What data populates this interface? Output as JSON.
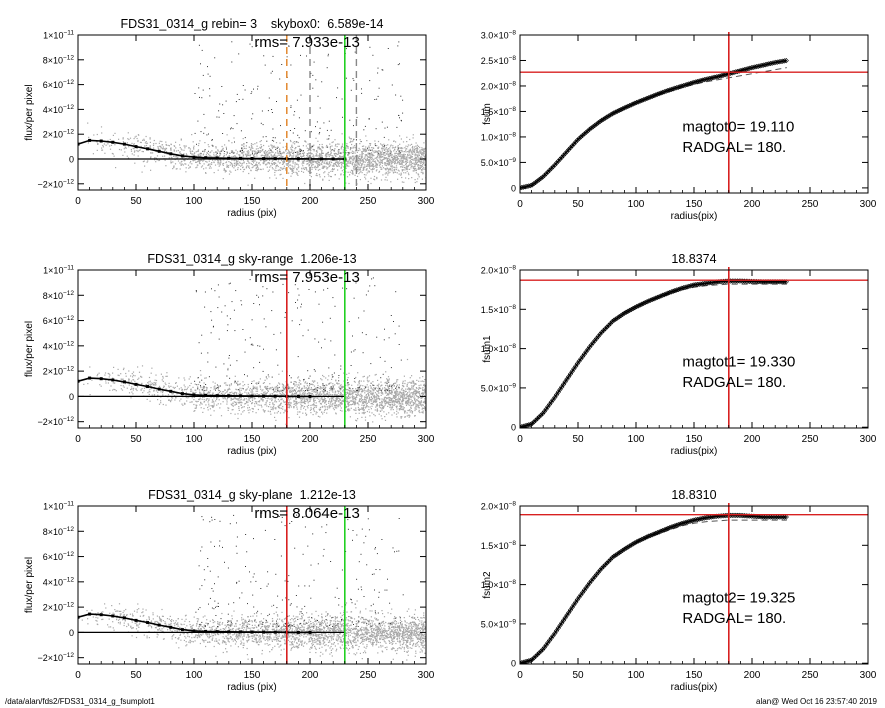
{
  "footer": {
    "path": "/data/alan/fds2/FDS31_0314_g_fsumplot1",
    "user_time": "alan@  Wed Oct 16 23:57:40 2019"
  },
  "colors": {
    "red": "#d82020",
    "green": "#22d022",
    "orange": "#e08020",
    "scatter_gray": "#a8a8a8",
    "axis": "#000000"
  },
  "chart_data": [
    {
      "id": "p1",
      "type": "scatter",
      "title": "FDS31_0314_g rebin= 3    skybox0:  6.589e-14",
      "annotation": "rms= 7.933e-13",
      "xlabel": "radius (pix)",
      "ylabel": "flux/per pixel",
      "xlim": [
        0,
        300
      ],
      "ylim": [
        -2.5e-12,
        1e-11
      ],
      "xticks": [
        0,
        50,
        100,
        150,
        200,
        250,
        300
      ],
      "yticks": [
        {
          "v": -2e-12,
          "m": "−2×10",
          "e": "−12"
        },
        {
          "v": 0,
          "m": "0",
          "e": ""
        },
        {
          "v": 2e-12,
          "m": "2×10",
          "e": "−12"
        },
        {
          "v": 4e-12,
          "m": "4×10",
          "e": "−12"
        },
        {
          "v": 6e-12,
          "m": "6×10",
          "e": "−12"
        },
        {
          "v": 8e-12,
          "m": "8×10",
          "e": "−12"
        },
        {
          "v": 1e-11,
          "m": "1×10",
          "e": "−11"
        }
      ],
      "profile": {
        "x": [
          0,
          10,
          20,
          30,
          40,
          50,
          60,
          70,
          80,
          90,
          100,
          110,
          120,
          130,
          140,
          150,
          160,
          170,
          180,
          190,
          200,
          210,
          220,
          230
        ],
        "y": [
          1.2e-12,
          1.5e-12,
          1.45e-12,
          1.35e-12,
          1.2e-12,
          1e-12,
          8.2e-13,
          6.2e-13,
          4.2e-13,
          2.5e-13,
          1.5e-13,
          1e-13,
          8e-14,
          6e-14,
          5e-14,
          4e-14,
          3e-14,
          3e-14,
          2e-14,
          2e-14,
          1e-14,
          1e-14,
          0.0,
          0.0
        ]
      },
      "vlines": [
        {
          "x": 180,
          "color": "#e08020",
          "style": "dashed"
        },
        {
          "x": 200,
          "color": "#888888",
          "style": "dashed"
        },
        {
          "x": 230,
          "color": "#22d022",
          "style": "solid"
        },
        {
          "x": 240,
          "color": "#888888",
          "style": "dashed"
        }
      ],
      "hlines": [
        {
          "y": 0,
          "color": "#000000"
        }
      ],
      "scatter_extent": 300
    },
    {
      "id": "p2",
      "type": "line",
      "title": "",
      "ann1": "magtot0=  19.110",
      "ann2": "RADGAL=    180.",
      "xlabel": "radius(pix)",
      "ylabel": "fsum",
      "xlim": [
        0,
        300
      ],
      "ylim": [
        -1e-09,
        3e-08
      ],
      "xticks": [
        0,
        50,
        100,
        150,
        200,
        250,
        300
      ],
      "yticks": [
        {
          "v": 0,
          "m": "0",
          "e": ""
        },
        {
          "v": 5e-09,
          "m": "5.0×10",
          "e": "−9"
        },
        {
          "v": 1e-08,
          "m": "1.0×10",
          "e": "−8"
        },
        {
          "v": 1.5e-08,
          "m": "1.5×10",
          "e": "−8"
        },
        {
          "v": 2e-08,
          "m": "2.0×10",
          "e": "−8"
        },
        {
          "v": 2.5e-08,
          "m": "2.5×10",
          "e": "−8"
        },
        {
          "v": 3e-08,
          "m": "3.0×10",
          "e": "−8"
        }
      ],
      "curve": {
        "x": [
          0,
          10,
          20,
          30,
          40,
          50,
          60,
          70,
          80,
          90,
          100,
          110,
          120,
          130,
          140,
          150,
          160,
          170,
          180,
          190,
          200,
          210,
          220,
          230
        ],
        "y": [
          0,
          5e-10,
          2.2e-09,
          4.5e-09,
          7e-09,
          9.5e-09,
          1.15e-08,
          1.32e-08,
          1.46e-08,
          1.57e-08,
          1.67e-08,
          1.76e-08,
          1.85e-08,
          1.93e-08,
          2e-08,
          2.07e-08,
          2.13e-08,
          2.18e-08,
          2.24e-08,
          2.3e-08,
          2.36e-08,
          2.41e-08,
          2.46e-08,
          2.5e-08
        ]
      },
      "curve_low": [
        0,
        5e-10,
        2.2e-09,
        4.5e-09,
        7e-09,
        9.5e-09,
        1.15e-08,
        1.32e-08,
        1.46e-08,
        1.57e-08,
        1.66e-08,
        1.75e-08,
        1.83e-08,
        1.9e-08,
        1.97e-08,
        2.03e-08,
        2.08e-08,
        2.12e-08,
        2.16e-08,
        2.2e-08,
        2.24e-08,
        2.28e-08,
        2.32e-08,
        2.36e-08
      ],
      "vline": {
        "x": 180,
        "color": "#d82020"
      },
      "hline": {
        "y": 2.27e-08,
        "color": "#d82020"
      }
    },
    {
      "id": "p3",
      "type": "scatter",
      "title": "FDS31_0314_g sky-range  1.206e-13",
      "annotation": "rms= 7.953e-13",
      "xlabel": "radius (pix)",
      "ylabel": "flux/per pixel",
      "xlim": [
        0,
        300
      ],
      "ylim": [
        -2.5e-12,
        1e-11
      ],
      "xticks": [
        0,
        50,
        100,
        150,
        200,
        250,
        300
      ],
      "yticks": [
        {
          "v": -2e-12,
          "m": "−2×10",
          "e": "−12"
        },
        {
          "v": 0,
          "m": "0",
          "e": ""
        },
        {
          "v": 2e-12,
          "m": "2×10",
          "e": "−12"
        },
        {
          "v": 4e-12,
          "m": "4×10",
          "e": "−12"
        },
        {
          "v": 6e-12,
          "m": "6×10",
          "e": "−12"
        },
        {
          "v": 8e-12,
          "m": "8×10",
          "e": "−12"
        },
        {
          "v": 1e-11,
          "m": "1×10",
          "e": "−11"
        }
      ],
      "profile": {
        "x": [
          0,
          10,
          20,
          30,
          40,
          50,
          60,
          70,
          80,
          90,
          100,
          110,
          120,
          130,
          140,
          150,
          160,
          170,
          180,
          190,
          200
        ],
        "y": [
          1.2e-12,
          1.45e-12,
          1.4e-12,
          1.3e-12,
          1.15e-12,
          9.5e-13,
          7.8e-13,
          5.8e-13,
          4e-13,
          2.2e-13,
          1.2e-13,
          8e-14,
          6e-14,
          5e-14,
          4e-14,
          3e-14,
          2e-14,
          2e-14,
          1e-14,
          0.0,
          0.0
        ]
      },
      "vlines": [
        {
          "x": 180,
          "color": "#d82020",
          "style": "solid"
        },
        {
          "x": 230,
          "color": "#22d022",
          "style": "solid"
        }
      ],
      "hlines": [
        {
          "y": 0,
          "color": "#000000"
        }
      ],
      "scatter_extent": 300
    },
    {
      "id": "p4",
      "type": "line",
      "title": "18.8374",
      "ann1": "magtot1=  19.330",
      "ann2": "RADGAL=    180.",
      "xlabel": "radius(pix)",
      "ylabel": "fsum1",
      "xlim": [
        0,
        300
      ],
      "ylim": [
        -1e-10,
        2e-08
      ],
      "xticks": [
        0,
        50,
        100,
        150,
        200,
        250,
        300
      ],
      "yticks": [
        {
          "v": 0,
          "m": "0",
          "e": ""
        },
        {
          "v": 5e-09,
          "m": "5.0×10",
          "e": "−9"
        },
        {
          "v": 1e-08,
          "m": "1.0×10",
          "e": "−8"
        },
        {
          "v": 1.5e-08,
          "m": "1.5×10",
          "e": "−8"
        },
        {
          "v": 2e-08,
          "m": "2.0×10",
          "e": "−8"
        }
      ],
      "curve": {
        "x": [
          0,
          10,
          20,
          30,
          40,
          50,
          60,
          70,
          80,
          90,
          100,
          110,
          120,
          130,
          140,
          150,
          160,
          170,
          180,
          190,
          200,
          210,
          220,
          230
        ],
        "y": [
          0,
          4e-10,
          1.8e-09,
          3.8e-09,
          6e-09,
          8.2e-09,
          1.02e-08,
          1.2e-08,
          1.35e-08,
          1.45e-08,
          1.53e-08,
          1.6e-08,
          1.66e-08,
          1.72e-08,
          1.77e-08,
          1.81e-08,
          1.83e-08,
          1.85e-08,
          1.86e-08,
          1.86e-08,
          1.855e-08,
          1.85e-08,
          1.85e-08,
          1.85e-08
        ]
      },
      "curve_low": [
        0,
        4e-10,
        1.8e-09,
        3.8e-09,
        6e-09,
        8.2e-09,
        1.02e-08,
        1.2e-08,
        1.35e-08,
        1.45e-08,
        1.53e-08,
        1.6e-08,
        1.65e-08,
        1.7e-08,
        1.75e-08,
        1.78e-08,
        1.8e-08,
        1.81e-08,
        1.82e-08,
        1.82e-08,
        1.82e-08,
        1.82e-08,
        1.82e-08,
        1.82e-08
      ],
      "vline": {
        "x": 180,
        "color": "#d82020"
      },
      "hline": {
        "y": 1.87e-08,
        "color": "#d82020"
      }
    },
    {
      "id": "p5",
      "type": "scatter",
      "title": "FDS31_0314_g sky-plane  1.212e-13",
      "annotation": "rms= 8.064e-13",
      "xlabel": "radius (pix)",
      "ylabel": "flux/per pixel",
      "xlim": [
        0,
        300
      ],
      "ylim": [
        -2.5e-12,
        1e-11
      ],
      "xticks": [
        0,
        50,
        100,
        150,
        200,
        250,
        300
      ],
      "yticks": [
        {
          "v": -2e-12,
          "m": "−2×10",
          "e": "−12"
        },
        {
          "v": 0,
          "m": "0",
          "e": ""
        },
        {
          "v": 2e-12,
          "m": "2×10",
          "e": "−12"
        },
        {
          "v": 4e-12,
          "m": "4×10",
          "e": "−12"
        },
        {
          "v": 6e-12,
          "m": "6×10",
          "e": "−12"
        },
        {
          "v": 8e-12,
          "m": "8×10",
          "e": "−12"
        },
        {
          "v": 1e-11,
          "m": "1×10",
          "e": "−11"
        }
      ],
      "profile": {
        "x": [
          0,
          10,
          20,
          30,
          40,
          50,
          60,
          70,
          80,
          90,
          100,
          110,
          120,
          130,
          140,
          150,
          160,
          170,
          180,
          190,
          200
        ],
        "y": [
          1.2e-12,
          1.45e-12,
          1.4e-12,
          1.3e-12,
          1.15e-12,
          9.5e-13,
          7.8e-13,
          5.8e-13,
          4e-13,
          2.2e-13,
          1.2e-13,
          8e-14,
          6e-14,
          5e-14,
          4e-14,
          3e-14,
          2e-14,
          2e-14,
          1e-14,
          0.0,
          0.0
        ]
      },
      "vlines": [
        {
          "x": 180,
          "color": "#d82020",
          "style": "solid"
        },
        {
          "x": 230,
          "color": "#22d022",
          "style": "solid"
        }
      ],
      "hlines": [
        {
          "y": 0,
          "color": "#000000"
        }
      ],
      "scatter_extent": 300
    },
    {
      "id": "p6",
      "type": "line",
      "title": "18.8310",
      "ann1": "magtot2=  19.325",
      "ann2": "RADGAL=    180.",
      "xlabel": "radius(pix)",
      "ylabel": "fsum2",
      "xlim": [
        0,
        300
      ],
      "ylim": [
        -1e-10,
        2e-08
      ],
      "xticks": [
        0,
        50,
        100,
        150,
        200,
        250,
        300
      ],
      "yticks": [
        {
          "v": 0,
          "m": "0",
          "e": ""
        },
        {
          "v": 5e-09,
          "m": "5.0×10",
          "e": "−9"
        },
        {
          "v": 1e-08,
          "m": "1.0×10",
          "e": "−8"
        },
        {
          "v": 1.5e-08,
          "m": "1.5×10",
          "e": "−8"
        },
        {
          "v": 2e-08,
          "m": "2.0×10",
          "e": "−8"
        }
      ],
      "curve": {
        "x": [
          0,
          10,
          20,
          30,
          40,
          50,
          60,
          70,
          80,
          90,
          100,
          110,
          120,
          130,
          140,
          150,
          160,
          170,
          180,
          190,
          200,
          210,
          220,
          230
        ],
        "y": [
          0,
          4e-10,
          1.8e-09,
          3.8e-09,
          6e-09,
          8.2e-09,
          1.02e-08,
          1.2e-08,
          1.35e-08,
          1.45e-08,
          1.54e-08,
          1.61e-08,
          1.67e-08,
          1.73e-08,
          1.78e-08,
          1.82e-08,
          1.85e-08,
          1.87e-08,
          1.88e-08,
          1.88e-08,
          1.87e-08,
          1.86e-08,
          1.86e-08,
          1.86e-08
        ]
      },
      "curve_low": [
        0,
        4e-10,
        1.8e-09,
        3.8e-09,
        6e-09,
        8.2e-09,
        1.02e-08,
        1.2e-08,
        1.35e-08,
        1.45e-08,
        1.53e-08,
        1.6e-08,
        1.65e-08,
        1.7e-08,
        1.75e-08,
        1.78e-08,
        1.8e-08,
        1.81e-08,
        1.82e-08,
        1.82e-08,
        1.82e-08,
        1.82e-08,
        1.82e-08,
        1.82e-08
      ],
      "vline": {
        "x": 180,
        "color": "#d82020"
      },
      "hline": {
        "y": 1.89e-08,
        "color": "#d82020"
      }
    }
  ]
}
